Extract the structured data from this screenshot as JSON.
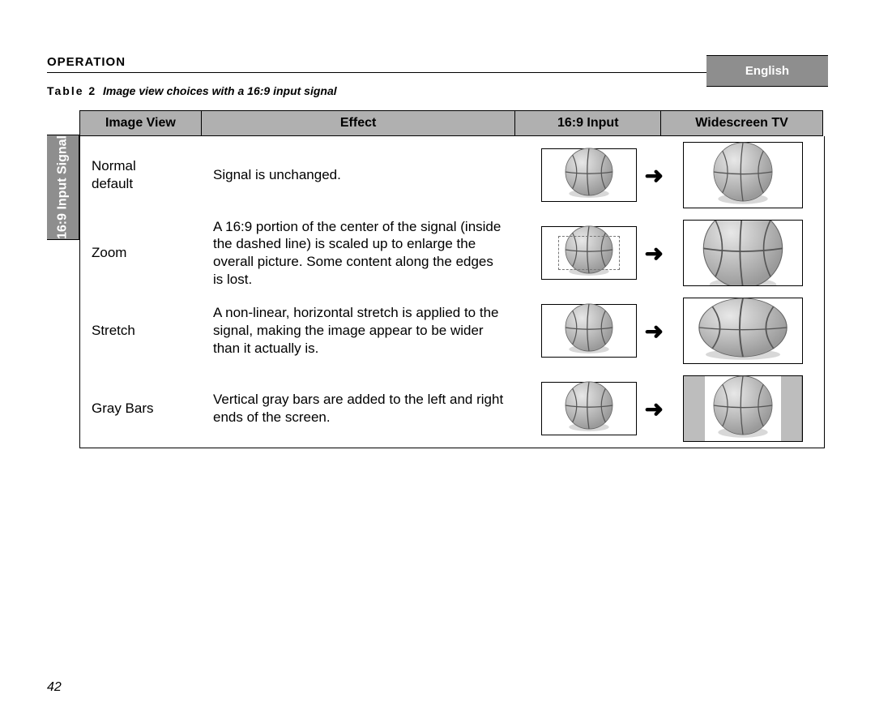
{
  "language_label": "English",
  "section_heading": "OPERATION",
  "caption_prefix": "Table 2",
  "caption_text": "Image view choices with a 16:9 input signal",
  "page_number": "42",
  "side_label": "16:9 Input Signal",
  "columns": {
    "image_view": "Image View",
    "effect": "Effect",
    "input": "16:9 Input",
    "widescreen": "Widescreen TV"
  },
  "rows": [
    {
      "view": "Normal default",
      "effect": "Signal is unchanged.",
      "input_variant": "normal",
      "ws_variant": "normal"
    },
    {
      "view": "Zoom",
      "effect": "A 16:9 portion of the center of the signal (inside the dashed line) is scaled up to enlarge the overall picture. Some content along the edges is lost.",
      "input_variant": "zoom",
      "ws_variant": "zoom"
    },
    {
      "view": "Stretch",
      "effect": "A non-linear, horizontal stretch is applied to the signal, making the image appear to be wider than it actually is.",
      "input_variant": "normal",
      "ws_variant": "stretch"
    },
    {
      "view": "Gray Bars",
      "effect": "Vertical gray bars are added to the left and right ends of the screen.",
      "input_variant": "normal",
      "ws_variant": "graybars"
    }
  ],
  "colors": {
    "header_bg": "#b0b0b0",
    "side_bg": "#8e8e8e",
    "graybar": "#bdbdbd",
    "ball_light": "#e8e8e8",
    "ball_dark": "#9a9a9a",
    "ball_shadow": "#c8c8c8",
    "line": "#000000"
  },
  "arrow_glyph": "➜"
}
